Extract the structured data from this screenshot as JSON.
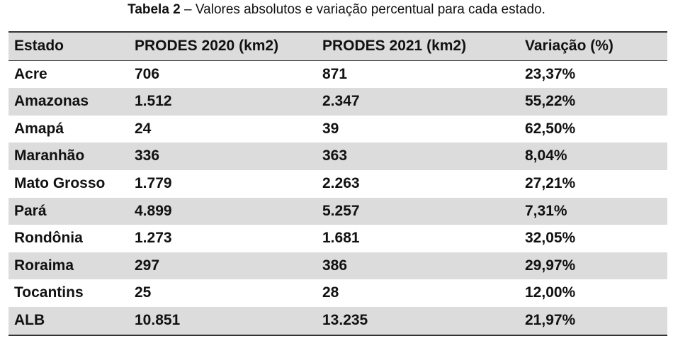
{
  "caption": {
    "label": "Tabela 2",
    "text": " – Valores absolutos e variação percentual para cada estado."
  },
  "table": {
    "header": [
      "Estado",
      "PRODES 2020 (km2)",
      "PRODES 2021 (km2)",
      "Variação (%)"
    ],
    "rows": [
      [
        "Acre",
        "706",
        "871",
        "23,37%"
      ],
      [
        "Amazonas",
        "1.512",
        "2.347",
        "55,22%"
      ],
      [
        "Amapá",
        "24",
        "39",
        "62,50%"
      ],
      [
        "Maranhão",
        "336",
        "363",
        "8,04%"
      ],
      [
        "Mato Grosso",
        "1.779",
        "2.263",
        "27,21%"
      ],
      [
        "Pará",
        "4.899",
        "5.257",
        "7,31%"
      ],
      [
        "Rondônia",
        "1.273",
        "1.681",
        "32,05%"
      ],
      [
        "Roraima",
        "297",
        "386",
        "29,97%"
      ],
      [
        "Tocantins",
        "25",
        "28",
        "12,00%"
      ],
      [
        "ALB",
        "10.851",
        "13.235",
        "21,97%"
      ]
    ]
  }
}
